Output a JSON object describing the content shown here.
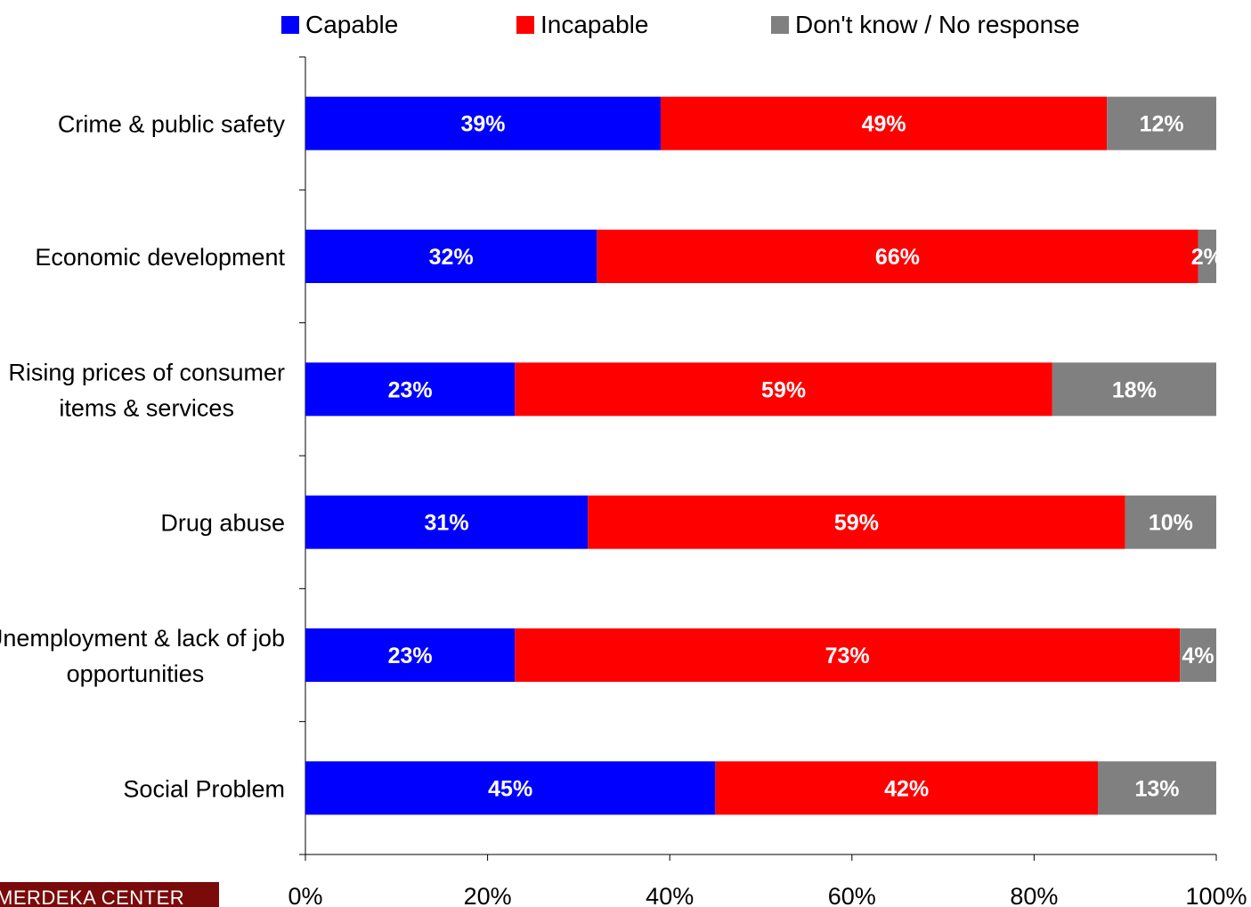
{
  "chart_data": {
    "type": "bar",
    "orientation": "horizontal",
    "stacked": "percent",
    "categories": [
      [
        "Crime & public safety"
      ],
      [
        "Economic development"
      ],
      [
        "Rising prices of consumer",
        "items & services"
      ],
      [
        "Drug abuse"
      ],
      [
        "Unemployment & lack of job",
        "opportunities"
      ],
      [
        "Social Problem"
      ]
    ],
    "series": [
      {
        "name": "Capable",
        "color": "#0000ff",
        "values": [
          39,
          32,
          23,
          31,
          23,
          45
        ]
      },
      {
        "name": "Incapable",
        "color": "#ff0000",
        "values": [
          49,
          66,
          59,
          59,
          73,
          42
        ]
      },
      {
        "name": "Don't know / No response",
        "color": "#808080",
        "values": [
          12,
          2,
          18,
          10,
          4,
          13
        ]
      }
    ],
    "data_labels": [
      [
        "39%",
        "32%",
        "23%",
        "31%",
        "23%",
        "45%"
      ],
      [
        "49%",
        "66%",
        "59%",
        "59%",
        "73%",
        "42%"
      ],
      [
        "12%",
        "2%",
        "18%",
        "10%",
        "4%",
        "13%"
      ]
    ],
    "xlim": [
      0,
      100
    ],
    "xticks": [
      "0%",
      "20%",
      "40%",
      "60%",
      "80%",
      "100%"
    ],
    "legend_position": "top",
    "grid": false
  },
  "watermark": {
    "text": "MERDEKA CENTER"
  }
}
